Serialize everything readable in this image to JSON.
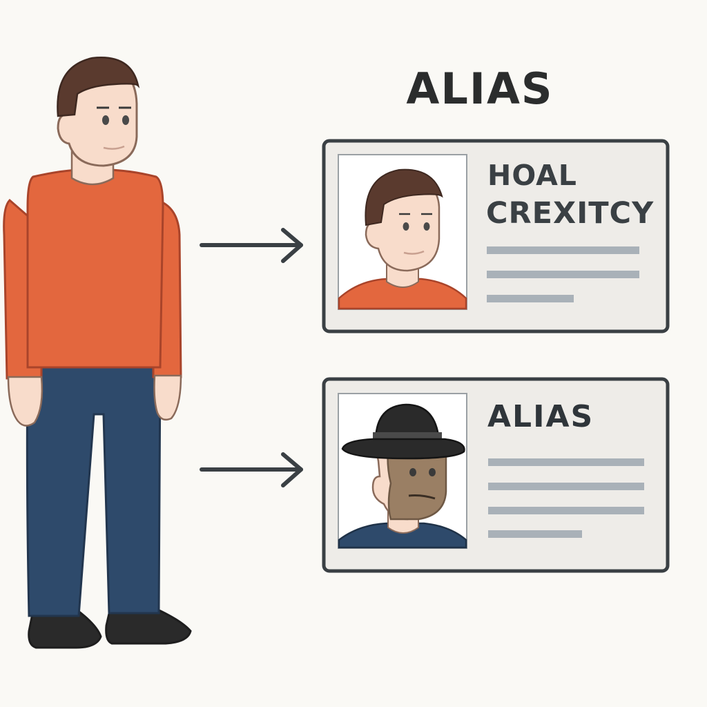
{
  "heading": "ALIAS",
  "cards": [
    {
      "title_lines": [
        "HOAL",
        "CREXITCY"
      ],
      "detail_line_count": 3
    },
    {
      "title_lines": [
        "ALIAS"
      ],
      "detail_line_count": 4
    }
  ],
  "colors": {
    "background": "#faf9f5",
    "shirt_orange": "#e3673e",
    "jeans_blue": "#2e4a6b",
    "skin": "#f8dccb",
    "hair": "#5a3a2e",
    "outline": "#3a4044",
    "card_fill": "#eeece8",
    "placeholder_line": "#a9b1b8",
    "hat_black": "#2a2a2a",
    "disguise_brown": "#9a7f64"
  }
}
